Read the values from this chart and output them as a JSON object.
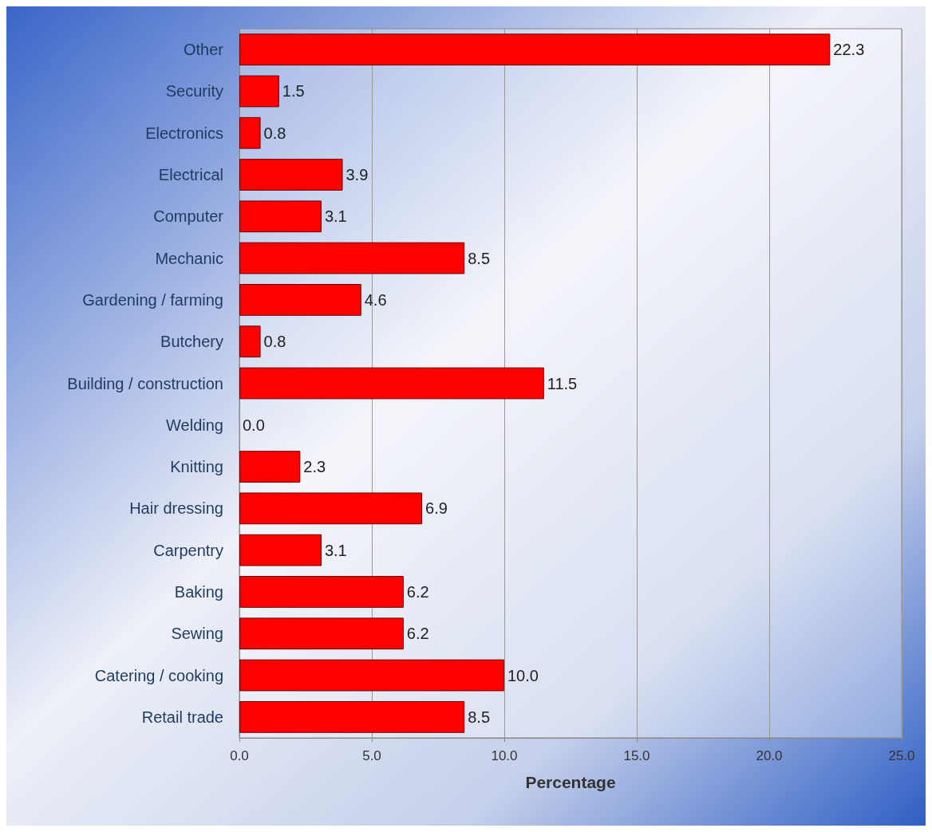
{
  "chart_data": {
    "type": "bar",
    "orientation": "horizontal",
    "xlabel": "Percentage",
    "categories": [
      "Other",
      "Security",
      "Electronics",
      "Electrical",
      "Computer",
      "Mechanic",
      "Gardening / farming",
      "Butchery",
      "Building / construction",
      "Welding",
      "Knitting",
      "Hair dressing",
      "Carpentry",
      "Baking",
      "Sewing",
      "Catering / cooking",
      "Retail trade"
    ],
    "values": [
      22.3,
      1.5,
      0.8,
      3.9,
      3.1,
      8.5,
      4.6,
      0.8,
      11.5,
      0.0,
      2.3,
      6.9,
      3.1,
      6.2,
      6.2,
      10.0,
      8.5
    ],
    "value_labels": [
      "22.3",
      "1.5",
      "0.8",
      "3.9",
      "3.1",
      "8.5",
      "4.6",
      "0.8",
      "11.5",
      "0.0",
      "2.3",
      "6.9",
      "3.1",
      "6.2",
      "6.2",
      "10.0",
      "8.5"
    ],
    "color": "#ff0000",
    "xlim": [
      0,
      25
    ],
    "xticks": [
      {
        "value": 0,
        "label": "0.0"
      },
      {
        "value": 5,
        "label": "5.0"
      },
      {
        "value": 10,
        "label": "10.0"
      },
      {
        "value": 15,
        "label": "15.0"
      },
      {
        "value": 20,
        "label": "20.0"
      },
      {
        "value": 25,
        "label": "25.0"
      }
    ],
    "grid": "x"
  }
}
